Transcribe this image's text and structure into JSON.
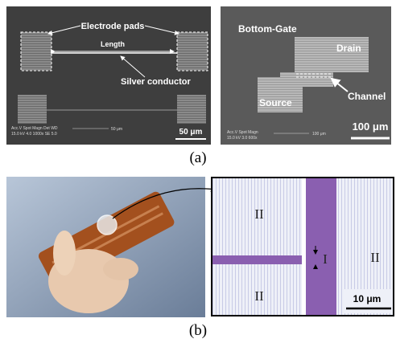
{
  "panel_a": {
    "left": {
      "callouts": {
        "pads": "Electrode pads",
        "length": "Length",
        "conductor": "Silver conductor"
      },
      "info_header": "Acc.V  Spot Magn   Det  WD",
      "info_values": "15.0 kV 4.0   1000x    SE  5.0",
      "info_scale": "50 μm",
      "scale_bar": "50 μm"
    },
    "right": {
      "title": "Bottom-Gate",
      "drain": "Drain",
      "channel": "Channel",
      "source": "Source",
      "info_header": "Acc.V  Spot Magn",
      "info_values": "15.0 kV 3.0   600x",
      "info_scale": "100 μm",
      "scale_bar": "100 μm"
    },
    "label": "(a)"
  },
  "panel_b": {
    "micrograph": {
      "regions": [
        "II",
        "II",
        "II",
        "I"
      ],
      "scale_bar": "10 μm"
    },
    "label": "(b)"
  }
}
